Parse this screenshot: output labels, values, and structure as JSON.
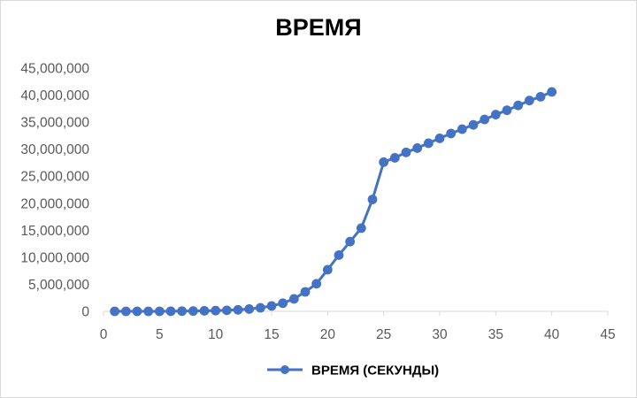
{
  "chart_data": {
    "type": "line",
    "title": "ВРЕМЯ",
    "xlabel": "",
    "ylabel": "",
    "xlim": [
      0,
      45
    ],
    "ylim": [
      0,
      45000000
    ],
    "x_ticks": [
      "0",
      "5",
      "10",
      "15",
      "20",
      "25",
      "30",
      "35",
      "40",
      "45"
    ],
    "x_tick_values": [
      0,
      5,
      10,
      15,
      20,
      25,
      30,
      35,
      40,
      45
    ],
    "y_ticks": [
      "0",
      "5,000,000",
      "10,000,000",
      "15,000,000",
      "20,000,000",
      "25,000,000",
      "30,000,000",
      "35,000,000",
      "40,000,000",
      "45,000,000"
    ],
    "y_tick_values": [
      0,
      5000000,
      10000000,
      15000000,
      20000000,
      25000000,
      30000000,
      35000000,
      40000000,
      45000000
    ],
    "grid": false,
    "legend_position": "bottom",
    "series_color": "#4472c4",
    "series": [
      {
        "name": "ВРЕМЯ (СЕКУНДЫ)",
        "x": [
          1,
          2,
          3,
          4,
          5,
          6,
          7,
          8,
          9,
          10,
          11,
          12,
          13,
          14,
          15,
          16,
          17,
          18,
          19,
          20,
          21,
          22,
          23,
          24,
          25,
          26,
          27,
          28,
          29,
          30,
          31,
          32,
          33,
          34,
          35,
          36,
          37,
          38,
          39,
          40
        ],
        "y": [
          0,
          0,
          0,
          0,
          0,
          20000,
          40000,
          60000,
          90000,
          130000,
          190000,
          280000,
          420000,
          650000,
          1000000,
          1500000,
          2300000,
          3600000,
          5100000,
          7700000,
          10400000,
          12900000,
          15400000,
          20700000,
          27600000,
          28400000,
          29400000,
          30200000,
          31100000,
          32000000,
          32900000,
          33700000,
          34500000,
          35500000,
          36400000,
          37200000,
          38100000,
          39000000,
          39700000,
          40600000
        ]
      }
    ]
  }
}
